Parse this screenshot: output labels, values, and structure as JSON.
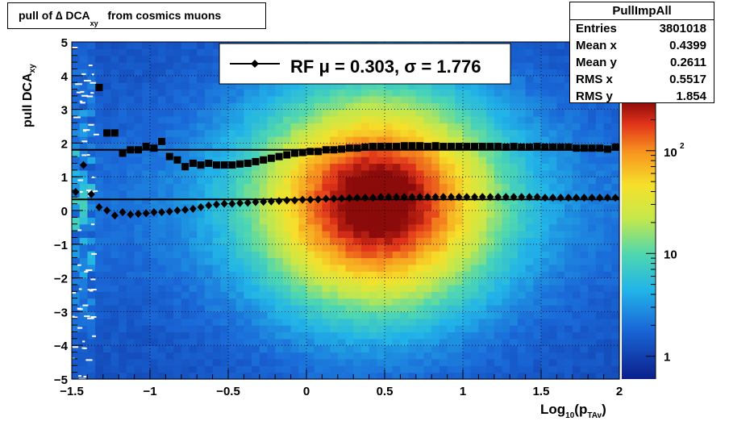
{
  "title": {
    "prefix": "pull of ∆ DCA",
    "sub": "xy",
    "suffix": "from cosmics muons"
  },
  "stats": {
    "name": "PullImpAll",
    "rows": [
      {
        "label": "Entries",
        "value": "3801018"
      },
      {
        "label": "Mean x",
        "value": "0.4399"
      },
      {
        "label": "Mean y",
        "value": "0.2611"
      },
      {
        "label": "RMS x",
        "value": "0.5517"
      },
      {
        "label": "RMS y",
        "value": "1.854"
      }
    ]
  },
  "legend": {
    "text": "RF  μ =  0.303, σ =   1.776"
  },
  "colors": {
    "marker": "#000000",
    "fit_line": "#000000"
  },
  "chart_data": {
    "type": "heatmap",
    "xlabel": "Log10(pTAv)",
    "xlabel_parts": {
      "main": "Log",
      "sub1": "10",
      "mid": "(p",
      "sub2": "TAv",
      "end": ")"
    },
    "ylabel": "pull DCAxy",
    "ylabel_parts": {
      "main": "pull DCA",
      "sub": "xy"
    },
    "xlim": [
      -1.5,
      2
    ],
    "ylim": [
      -5,
      5
    ],
    "z_scale": "log",
    "zlim": [
      0.6,
      300
    ],
    "x_ticks": [
      -1.5,
      -1,
      -0.5,
      0,
      0.5,
      1,
      1.5,
      2
    ],
    "x_tick_labels": [
      "−1.5",
      "−1",
      "−0.5",
      "0",
      "0.5",
      "1",
      "1.5",
      "2"
    ],
    "y_ticks": [
      -5,
      -4,
      -3,
      -2,
      -1,
      0,
      1,
      2,
      3,
      4,
      5
    ],
    "y_tick_labels": [
      "−5",
      "−4",
      "−3",
      "−2",
      "−1",
      "0",
      "1",
      "2",
      "3",
      "4",
      "5"
    ],
    "z_ticks": [
      1,
      10,
      100
    ],
    "grid": true,
    "fit_lines": [
      {
        "y": 0.33
      },
      {
        "y": 1.8
      }
    ],
    "series": [
      {
        "marker": "diamond",
        "x": [
          -1.475,
          -1.425,
          -1.375,
          -1.325,
          -1.275,
          -1.225,
          -1.175,
          -1.125,
          -1.075,
          -1.025,
          -0.975,
          -0.925,
          -0.875,
          -0.825,
          -0.775,
          -0.725,
          -0.675,
          -0.625,
          -0.575,
          -0.525,
          -0.475,
          -0.425,
          -0.375,
          -0.325,
          -0.275,
          -0.225,
          -0.175,
          -0.125,
          -0.075,
          -0.025,
          0.025,
          0.075,
          0.125,
          0.175,
          0.225,
          0.275,
          0.325,
          0.375,
          0.425,
          0.475,
          0.525,
          0.575,
          0.625,
          0.675,
          0.725,
          0.775,
          0.825,
          0.875,
          0.925,
          0.975,
          1.025,
          1.075,
          1.125,
          1.175,
          1.225,
          1.275,
          1.325,
          1.375,
          1.425,
          1.475,
          1.525,
          1.575,
          1.625,
          1.675,
          1.725,
          1.775,
          1.825,
          1.875,
          1.925,
          1.975
        ],
        "y": [
          0.55,
          1.35,
          0.48,
          0.1,
          0.0,
          -0.15,
          -0.05,
          -0.12,
          -0.1,
          -0.08,
          -0.05,
          -0.05,
          -0.03,
          0.0,
          0.02,
          0.05,
          0.1,
          0.15,
          0.18,
          0.2,
          0.2,
          0.22,
          0.23,
          0.25,
          0.26,
          0.27,
          0.28,
          0.3,
          0.3,
          0.32,
          0.32,
          0.33,
          0.35,
          0.35,
          0.36,
          0.37,
          0.38,
          0.38,
          0.38,
          0.4,
          0.4,
          0.4,
          0.4,
          0.4,
          0.4,
          0.4,
          0.4,
          0.4,
          0.4,
          0.4,
          0.4,
          0.4,
          0.4,
          0.4,
          0.4,
          0.4,
          0.4,
          0.4,
          0.4,
          0.4,
          0.38,
          0.38,
          0.38,
          0.38,
          0.38,
          0.38,
          0.38,
          0.38,
          0.38,
          0.38
        ]
      },
      {
        "marker": "square",
        "x": [
          -1.325,
          -1.275,
          -1.225,
          -1.175,
          -1.125,
          -1.075,
          -1.025,
          -0.975,
          -0.925,
          -0.875,
          -0.825,
          -0.775,
          -0.725,
          -0.675,
          -0.625,
          -0.575,
          -0.525,
          -0.475,
          -0.425,
          -0.375,
          -0.325,
          -0.275,
          -0.225,
          -0.175,
          -0.125,
          -0.075,
          -0.025,
          0.025,
          0.075,
          0.125,
          0.175,
          0.225,
          0.275,
          0.325,
          0.375,
          0.425,
          0.475,
          0.525,
          0.575,
          0.625,
          0.675,
          0.725,
          0.775,
          0.825,
          0.875,
          0.925,
          0.975,
          1.025,
          1.075,
          1.125,
          1.175,
          1.225,
          1.275,
          1.325,
          1.375,
          1.425,
          1.475,
          1.525,
          1.575,
          1.625,
          1.675,
          1.725,
          1.775,
          1.825,
          1.875,
          1.925,
          1.975
        ],
        "y": [
          3.65,
          2.3,
          2.3,
          1.7,
          1.8,
          1.8,
          1.9,
          1.85,
          2.05,
          1.6,
          1.5,
          1.3,
          1.4,
          1.35,
          1.4,
          1.35,
          1.35,
          1.35,
          1.38,
          1.4,
          1.45,
          1.5,
          1.55,
          1.6,
          1.65,
          1.7,
          1.72,
          1.75,
          1.75,
          1.8,
          1.8,
          1.82,
          1.85,
          1.85,
          1.88,
          1.9,
          1.9,
          1.9,
          1.9,
          1.92,
          1.92,
          1.92,
          1.9,
          1.92,
          1.9,
          1.9,
          1.9,
          1.9,
          1.9,
          1.9,
          1.9,
          1.9,
          1.88,
          1.9,
          1.88,
          1.88,
          1.9,
          1.88,
          1.88,
          1.88,
          1.88,
          1.85,
          1.85,
          1.85,
          1.85,
          1.82,
          1.88
        ]
      }
    ]
  }
}
